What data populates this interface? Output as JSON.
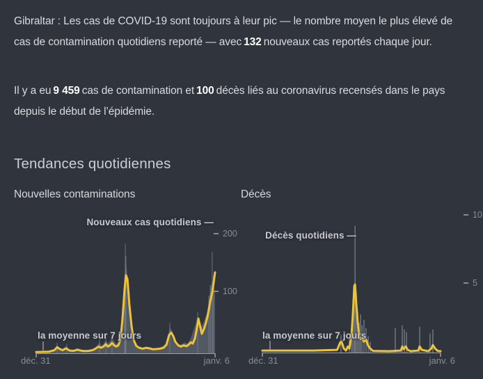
{
  "colors": {
    "background": "#2f343d",
    "body_text": "#d9dbde",
    "accent_yellow": "#eec33c",
    "bar_fill": "#565c66",
    "bar_spike": "#767d87",
    "axis": "#9ba1a9",
    "tick_text": "#888e97"
  },
  "intro": {
    "p1": [
      "Gibraltar : Les cas de COVID-19 sont toujours à leur pic — le nombre moyen le plus élevé de cas de contamination quotidiens reporté — avec",
      "132",
      "nouveaux cas reportés chaque jour."
    ],
    "p2": [
      "Il y a eu",
      "9 459",
      "cas de contamination et",
      "100",
      "décès liés au coronavirus recensés dans le pays depuis le début de l’épidémie."
    ]
  },
  "stats": {
    "daily_new_cases_avg": "132",
    "total_cases": "9 459",
    "total_deaths": "100"
  },
  "section": {
    "title": "Tendances quotidiennes"
  },
  "chart_data": [
    {
      "type": "area",
      "panel_label": "Nouvelles contaminations",
      "title": "Nouveaux cas quotidiens —",
      "avg_label": "la moyenne sur 7 jours",
      "x_tick_labels": [
        "déc. 31",
        "janv. 6"
      ],
      "y_tick_labels": [
        "100",
        "200"
      ],
      "ylim": [
        0,
        215
      ],
      "grid": false,
      "daily_area": [
        [
          0,
          1
        ],
        [
          0.031,
          2
        ],
        [
          0.07,
          2
        ],
        [
          0.101,
          4
        ],
        [
          0.117,
          14
        ],
        [
          0.128,
          9
        ],
        [
          0.14,
          6
        ],
        [
          0.16,
          10
        ],
        [
          0.171,
          12
        ],
        [
          0.183,
          6
        ],
        [
          0.202,
          4
        ],
        [
          0.218,
          6
        ],
        [
          0.233,
          8
        ],
        [
          0.249,
          5
        ],
        [
          0.268,
          3
        ],
        [
          0.288,
          4
        ],
        [
          0.307,
          5
        ],
        [
          0.327,
          8
        ],
        [
          0.342,
          14
        ],
        [
          0.354,
          18
        ],
        [
          0.366,
          12
        ],
        [
          0.377,
          16
        ],
        [
          0.389,
          22
        ],
        [
          0.401,
          16
        ],
        [
          0.412,
          20
        ],
        [
          0.424,
          26
        ],
        [
          0.436,
          20
        ],
        [
          0.447,
          15
        ],
        [
          0.459,
          18
        ],
        [
          0.471,
          30
        ],
        [
          0.482,
          70
        ],
        [
          0.49,
          110
        ],
        [
          0.498,
          150
        ],
        [
          0.506,
          140
        ],
        [
          0.514,
          118
        ],
        [
          0.521,
          92
        ],
        [
          0.529,
          60
        ],
        [
          0.541,
          35
        ],
        [
          0.553,
          20
        ],
        [
          0.568,
          12
        ],
        [
          0.588,
          8
        ],
        [
          0.607,
          10
        ],
        [
          0.626,
          9
        ],
        [
          0.646,
          7
        ],
        [
          0.665,
          8
        ],
        [
          0.685,
          9
        ],
        [
          0.704,
          11
        ],
        [
          0.724,
          16
        ],
        [
          0.735,
          28
        ],
        [
          0.747,
          42
        ],
        [
          0.759,
          38
        ],
        [
          0.77,
          26
        ],
        [
          0.782,
          18
        ],
        [
          0.798,
          14
        ],
        [
          0.813,
          15
        ],
        [
          0.829,
          18
        ],
        [
          0.844,
          16
        ],
        [
          0.856,
          20
        ],
        [
          0.868,
          28
        ],
        [
          0.879,
          38
        ],
        [
          0.891,
          48
        ],
        [
          0.903,
          62
        ],
        [
          0.91,
          55
        ],
        [
          0.918,
          42
        ],
        [
          0.93,
          48
        ],
        [
          0.941,
          55
        ],
        [
          0.953,
          65
        ],
        [
          0.965,
          85
        ],
        [
          0.973,
          105
        ],
        [
          0.984,
          120
        ],
        [
          0.992,
          115
        ],
        [
          1,
          100
        ]
      ],
      "spikes": [
        [
          0.117,
          17
        ],
        [
          0.171,
          15
        ],
        [
          0.354,
          23
        ],
        [
          0.389,
          27
        ],
        [
          0.424,
          31
        ],
        [
          0.494,
          120
        ],
        [
          0.498,
          180
        ],
        [
          0.502,
          160
        ],
        [
          0.747,
          50
        ],
        [
          0.903,
          68
        ],
        [
          0.965,
          95
        ],
        [
          0.973,
          112
        ],
        [
          0.984,
          167
        ],
        [
          0.99,
          128
        ]
      ],
      "avg_line": [
        [
          0,
          2
        ],
        [
          0.07,
          2.5
        ],
        [
          0.101,
          5
        ],
        [
          0.117,
          10
        ],
        [
          0.132,
          7
        ],
        [
          0.148,
          5
        ],
        [
          0.167,
          8
        ],
        [
          0.187,
          4.5
        ],
        [
          0.21,
          4
        ],
        [
          0.23,
          6
        ],
        [
          0.249,
          4.5
        ],
        [
          0.272,
          3.5
        ],
        [
          0.296,
          4
        ],
        [
          0.319,
          5.5
        ],
        [
          0.339,
          9
        ],
        [
          0.35,
          11
        ],
        [
          0.362,
          9
        ],
        [
          0.377,
          11
        ],
        [
          0.389,
          15
        ],
        [
          0.401,
          11
        ],
        [
          0.412,
          13
        ],
        [
          0.424,
          17
        ],
        [
          0.436,
          13
        ],
        [
          0.447,
          11
        ],
        [
          0.459,
          13
        ],
        [
          0.471,
          22
        ],
        [
          0.482,
          55
        ],
        [
          0.494,
          105
        ],
        [
          0.502,
          128
        ],
        [
          0.51,
          122
        ],
        [
          0.521,
          80
        ],
        [
          0.533,
          45
        ],
        [
          0.545,
          22
        ],
        [
          0.56,
          12
        ],
        [
          0.576,
          9
        ],
        [
          0.595,
          7.5
        ],
        [
          0.615,
          9
        ],
        [
          0.634,
          8
        ],
        [
          0.654,
          6.5
        ],
        [
          0.673,
          7
        ],
        [
          0.693,
          7.5
        ],
        [
          0.712,
          9
        ],
        [
          0.728,
          14
        ],
        [
          0.743,
          30
        ],
        [
          0.755,
          34
        ],
        [
          0.767,
          28
        ],
        [
          0.778,
          19
        ],
        [
          0.794,
          13
        ],
        [
          0.809,
          11
        ],
        [
          0.825,
          13
        ],
        [
          0.84,
          11.5
        ],
        [
          0.852,
          14
        ],
        [
          0.864,
          18
        ],
        [
          0.875,
          16
        ],
        [
          0.887,
          24
        ],
        [
          0.899,
          42
        ],
        [
          0.907,
          57
        ],
        [
          0.914,
          48
        ],
        [
          0.926,
          32
        ],
        [
          0.938,
          40
        ],
        [
          0.949,
          50
        ],
        [
          0.961,
          65
        ],
        [
          0.973,
          85
        ],
        [
          0.984,
          100
        ],
        [
          0.992,
          115
        ],
        [
          1,
          133
        ]
      ],
      "latest_avg_value": 132
    },
    {
      "type": "bar",
      "panel_label": "Décès",
      "title": "Décès quotidiens —",
      "avg_label": "la moyenne sur 7 jours",
      "x_tick_labels": [
        "déc. 31",
        "janv. 6"
      ],
      "y_tick_labels": [
        "5",
        "10"
      ],
      "ylim": [
        0,
        10.5
      ],
      "grid": false,
      "daily_bars": [
        [
          0.441,
          1.3
        ],
        [
          0.488,
          1.0
        ],
        [
          0.5,
          1.8
        ],
        [
          0.508,
          2.6
        ],
        [
          0.516,
          4.0
        ],
        [
          0.52,
          9.3
        ],
        [
          0.527,
          4.4
        ],
        [
          0.535,
          3.0
        ],
        [
          0.543,
          2.2
        ],
        [
          0.551,
          2.8
        ],
        [
          0.559,
          2.0
        ],
        [
          0.57,
          2.4
        ],
        [
          0.582,
          1.8
        ],
        [
          0.594,
          1.2
        ],
        [
          0.605,
          0.8
        ],
        [
          0.746,
          1.8
        ],
        [
          0.785,
          2.0
        ],
        [
          0.797,
          1.7
        ],
        [
          0.809,
          1.5
        ],
        [
          0.883,
          1.9
        ],
        [
          0.941,
          1.4
        ],
        [
          0.957,
          1.7
        ]
      ],
      "avg_line": [
        [
          0,
          0.15
        ],
        [
          0.285,
          0.15
        ],
        [
          0.42,
          0.2
        ],
        [
          0.437,
          0.75
        ],
        [
          0.445,
          0.8
        ],
        [
          0.457,
          0.3
        ],
        [
          0.469,
          0.15
        ],
        [
          0.48,
          0.45
        ],
        [
          0.488,
          0.3
        ],
        [
          0.5,
          1.2
        ],
        [
          0.508,
          2.8
        ],
        [
          0.516,
          4.9
        ],
        [
          0.52,
          5
        ],
        [
          0.527,
          3.6
        ],
        [
          0.535,
          2.2
        ],
        [
          0.543,
          1.3
        ],
        [
          0.551,
          1
        ],
        [
          0.563,
          1.05
        ],
        [
          0.57,
          0.8
        ],
        [
          0.582,
          0.95
        ],
        [
          0.594,
          0.5
        ],
        [
          0.605,
          0.3
        ],
        [
          0.621,
          0.12
        ],
        [
          0.715,
          0.1
        ],
        [
          0.777,
          0.15
        ],
        [
          0.785,
          0.45
        ],
        [
          0.793,
          0.25
        ],
        [
          0.805,
          0.45
        ],
        [
          0.816,
          0.2
        ],
        [
          0.832,
          0.1
        ],
        [
          0.875,
          0.15
        ],
        [
          0.883,
          0.45
        ],
        [
          0.895,
          0.2
        ],
        [
          0.93,
          0.1
        ],
        [
          0.949,
          0.3
        ],
        [
          0.957,
          0.55
        ],
        [
          0.969,
          0.3
        ],
        [
          0.984,
          0.12
        ],
        [
          1,
          0.1
        ]
      ],
      "peak_daily_value": 9,
      "peak_avg_value": 5
    }
  ]
}
